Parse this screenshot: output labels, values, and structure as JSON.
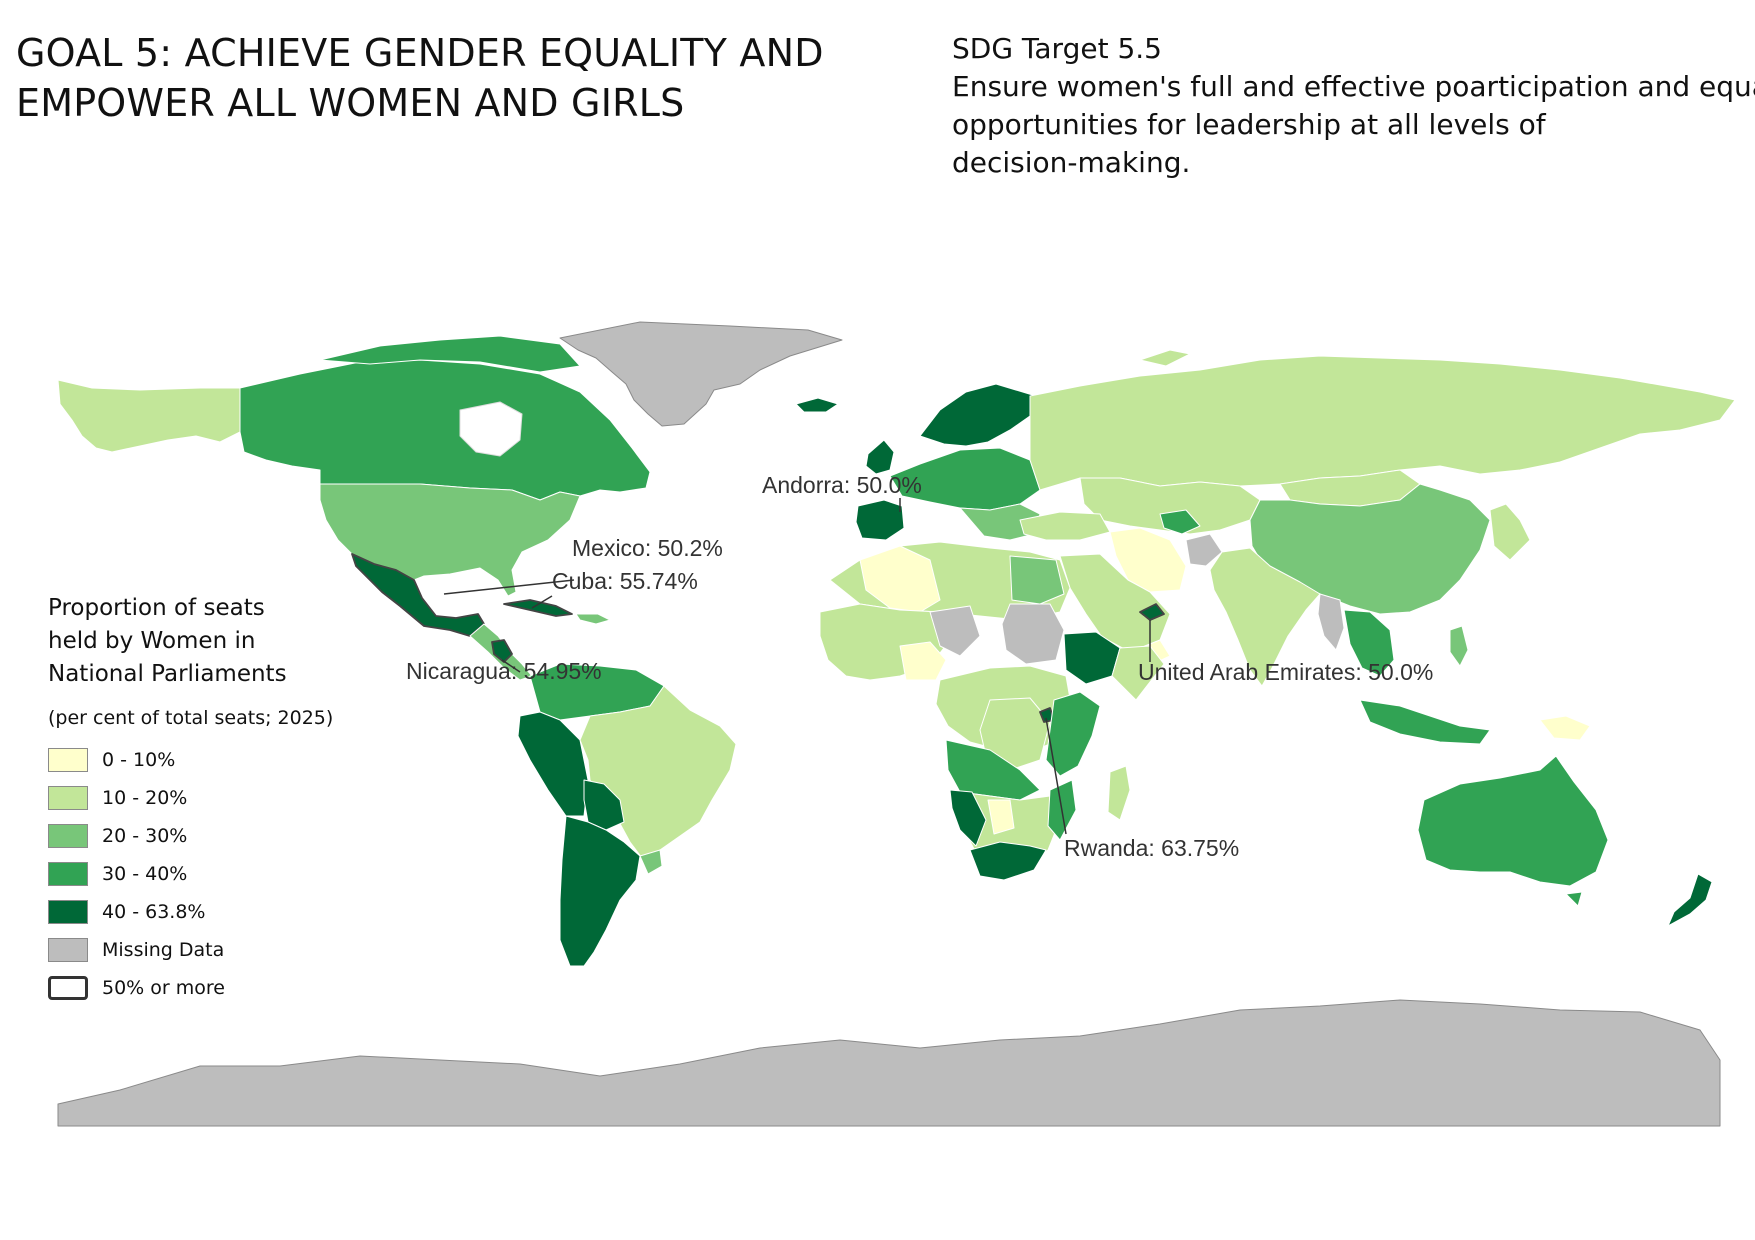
{
  "goal": {
    "line1": "GOAL 5: ACHIEVE GENDER EQUALITY AND",
    "line2": "EMPOWER ALL WOMEN AND GIRLS"
  },
  "target": {
    "heading": "SDG Target 5.5",
    "line1": "Ensure women's full and effective poarticipation and equal",
    "line2": "opportunities for leadership at all levels of",
    "line3": "decision-making."
  },
  "legend": {
    "title_line1": "Proportion of seats",
    "title_line2": "held by Women in",
    "title_line3": "National Parliaments",
    "subtitle": "(per cent of total seats; 2025)",
    "classes": [
      {
        "label": "0 - 10%",
        "color": "#ffffcc"
      },
      {
        "label": "10 - 20%",
        "color": "#c2e699"
      },
      {
        "label": "20 - 30%",
        "color": "#78c679"
      },
      {
        "label": "30 - 40%",
        "color": "#31a354"
      },
      {
        "label": "40 - 63.8%",
        "color": "#006837"
      },
      {
        "label": "Missing Data",
        "color": "#bdbdbd"
      },
      {
        "label": "50% or more",
        "color": "#ffffff",
        "outline": true
      }
    ]
  },
  "callouts": {
    "andorra": "Andorra: 50.0%",
    "mexico": "Mexico: 50.2%",
    "cuba": "Cuba: 55.74%",
    "nicaragua": "Nicaragua: 54.95%",
    "uae": "United Arab Emirates: 50.0%",
    "rwanda": "Rwanda: 63.75%"
  },
  "colors": {
    "c0": "#ffffcc",
    "c1": "#c2e699",
    "c2": "#78c679",
    "c3": "#31a354",
    "c4": "#006837",
    "missing": "#bdbdbd",
    "border": "#ffffff"
  }
}
